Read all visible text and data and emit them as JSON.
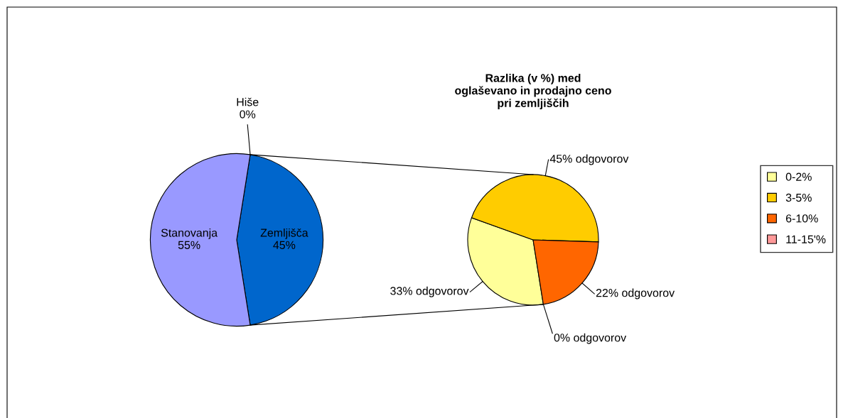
{
  "chart_data": [
    {
      "type": "pie",
      "categories": [
        "Zemljišča",
        "Hiše",
        "Stanovanja"
      ],
      "values": [
        45,
        0,
        55
      ],
      "colors": [
        "#0066cc",
        "#ff8080",
        "#9999ff"
      ],
      "value_labels": [
        "45%",
        "0%",
        "55%"
      ]
    },
    {
      "type": "pie",
      "title": "Razlika (v %) med\noglaševano in prodajno ceno\npri zemljiščih",
      "categories": [
        "0-2%",
        "3-5%",
        "6-10%",
        "11-15'%"
      ],
      "values": [
        33,
        45,
        22,
        0
      ],
      "colors": [
        "#ffff99",
        "#ffcc00",
        "#ff6600",
        "#ff9999"
      ],
      "value_labels": [
        "33% odgovorov",
        "45% odgovorov",
        "22% odgovorov",
        "0% odgovorov"
      ],
      "legend": "right"
    }
  ]
}
